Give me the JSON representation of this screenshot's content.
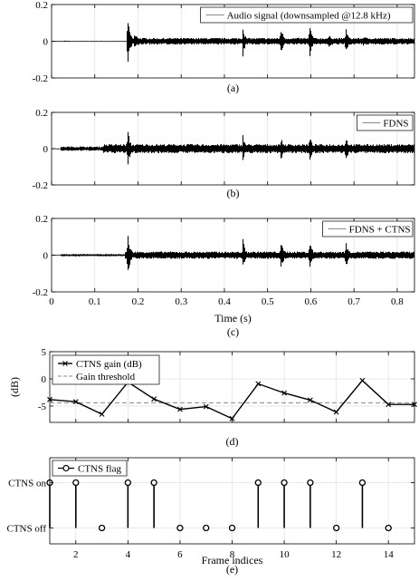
{
  "chart_data": [
    {
      "id": "a",
      "type": "line",
      "caption": "(a)",
      "legend": "Audio signal (downsampled @12.8 kHz)",
      "legend_position": "top-right",
      "xlim": [
        0,
        0.84
      ],
      "ylim": [
        -0.2,
        0.2
      ],
      "yticks": [
        -0.2,
        0,
        0.2
      ],
      "ytick_labels": [
        "-0.2",
        "0",
        "0.2"
      ],
      "xticks": [
        0,
        0.1,
        0.2,
        0.3,
        0.4,
        0.5,
        0.6,
        0.7,
        0.8
      ],
      "grid": true,
      "xtick_labels_shown": false,
      "envelope": {
        "base_segments": [
          [
            0,
            0.03,
            0.001
          ],
          [
            0.03,
            0.04,
            0.003
          ],
          [
            0.04,
            0.175,
            0.001
          ],
          [
            0.175,
            0.84,
            0.018
          ]
        ],
        "bursts": [
          {
            "t": 0.176,
            "amp": 0.14,
            "width": 0.006
          },
          {
            "t": 0.19,
            "amp": 0.04,
            "width": 0.02
          },
          {
            "t": 0.443,
            "amp": 0.1,
            "width": 0.005
          },
          {
            "t": 0.53,
            "amp": 0.09,
            "width": 0.007
          },
          {
            "t": 0.596,
            "amp": 0.11,
            "width": 0.007
          },
          {
            "t": 0.64,
            "amp": 0.035,
            "width": 0.02
          },
          {
            "t": 0.68,
            "amp": 0.1,
            "width": 0.006
          },
          {
            "t": 0.72,
            "amp": 0.03,
            "width": 0.02
          }
        ]
      }
    },
    {
      "id": "b",
      "type": "line",
      "caption": "(b)",
      "legend": "FDNS",
      "legend_position": "top-right",
      "xlim": [
        0,
        0.84
      ],
      "ylim": [
        -0.2,
        0.2
      ],
      "yticks": [
        -0.2,
        0,
        0.2
      ],
      "ytick_labels": [
        "-0.2",
        "0",
        "0.2"
      ],
      "xticks": [
        0,
        0.1,
        0.2,
        0.3,
        0.4,
        0.5,
        0.6,
        0.7,
        0.8
      ],
      "grid": true,
      "xtick_labels_shown": false,
      "envelope": {
        "base_segments": [
          [
            0,
            0.02,
            0.001
          ],
          [
            0.02,
            0.12,
            0.012
          ],
          [
            0.12,
            0.84,
            0.025
          ]
        ],
        "bursts": [
          {
            "t": 0.176,
            "amp": 0.12,
            "width": 0.006
          },
          {
            "t": 0.443,
            "amp": 0.08,
            "width": 0.006
          },
          {
            "t": 0.53,
            "amp": 0.07,
            "width": 0.008
          },
          {
            "t": 0.596,
            "amp": 0.09,
            "width": 0.007
          },
          {
            "t": 0.68,
            "amp": 0.09,
            "width": 0.007
          }
        ]
      }
    },
    {
      "id": "c",
      "type": "line",
      "caption": "(c)",
      "legend": "FDNS + CTNS",
      "legend_position": "top-right",
      "xlim": [
        0,
        0.84
      ],
      "ylim": [
        -0.2,
        0.2
      ],
      "yticks": [
        -0.2,
        0,
        0.2
      ],
      "ytick_labels": [
        "-0.2",
        "0",
        "0.2"
      ],
      "xticks": [
        0,
        0.1,
        0.2,
        0.3,
        0.4,
        0.5,
        0.6,
        0.7,
        0.8
      ],
      "xtick_labels": [
        "0",
        "0.1",
        "0.2",
        "0.3",
        "0.4",
        "0.5",
        "0.6",
        "0.7",
        "0.8"
      ],
      "xlabel": "Time (s)",
      "grid": true,
      "xtick_labels_shown": true,
      "envelope": {
        "base_segments": [
          [
            0,
            0.02,
            0.001
          ],
          [
            0.02,
            0.17,
            0.006
          ],
          [
            0.17,
            0.84,
            0.02
          ]
        ],
        "bursts": [
          {
            "t": 0.176,
            "amp": 0.13,
            "width": 0.006
          },
          {
            "t": 0.443,
            "amp": 0.09,
            "width": 0.006
          },
          {
            "t": 0.53,
            "amp": 0.08,
            "width": 0.008
          },
          {
            "t": 0.596,
            "amp": 0.1,
            "width": 0.007
          },
          {
            "t": 0.68,
            "amp": 0.09,
            "width": 0.007
          }
        ]
      }
    },
    {
      "id": "d",
      "type": "line",
      "caption": "(d)",
      "ylabel": "(dB)",
      "xlim": [
        1,
        15
      ],
      "ylim": [
        -8,
        5
      ],
      "yticks": [
        -5,
        0,
        5
      ],
      "ytick_labels": [
        "-5",
        "0",
        "5"
      ],
      "xticks": [
        2,
        4,
        6,
        8,
        10,
        12,
        14
      ],
      "grid": true,
      "legend_position": "top-left",
      "series": [
        {
          "name": "CTNS gain (dB)",
          "style": "solid-cross",
          "x": [
            1,
            2,
            3,
            4,
            5,
            6,
            7,
            8,
            9,
            10,
            11,
            12,
            13,
            14,
            15
          ],
          "y": [
            -3.8,
            -4.2,
            -6.5,
            -0.6,
            -3.7,
            -5.6,
            -5.1,
            -7.3,
            -0.9,
            -2.6,
            -3.9,
            -6.1,
            -0.3,
            -4.7,
            -4.7
          ]
        },
        {
          "name": "Gain threshold",
          "style": "dashed",
          "x": [
            1,
            15
          ],
          "y": [
            -4.4,
            -4.4
          ]
        }
      ]
    },
    {
      "id": "e",
      "type": "stem",
      "caption": "(e)",
      "xlabel": "Frame indices",
      "xlim": [
        1,
        15
      ],
      "ylim": [
        -0.35,
        1.55
      ],
      "yticks": [
        0,
        1
      ],
      "ytick_labels": [
        "CTNS off",
        "CTNS on"
      ],
      "xticks": [
        2,
        4,
        6,
        8,
        10,
        12,
        14
      ],
      "xtick_labels": [
        "2",
        "4",
        "6",
        "8",
        "10",
        "12",
        "14"
      ],
      "grid": true,
      "legend_position": "top-left",
      "series": [
        {
          "name": "CTNS flag",
          "x": [
            1,
            2,
            3,
            4,
            5,
            6,
            7,
            8,
            9,
            10,
            11,
            12,
            13,
            14
          ],
          "y": [
            1,
            1,
            0,
            1,
            1,
            0,
            0,
            0,
            1,
            1,
            1,
            0,
            1,
            0
          ]
        }
      ]
    }
  ]
}
